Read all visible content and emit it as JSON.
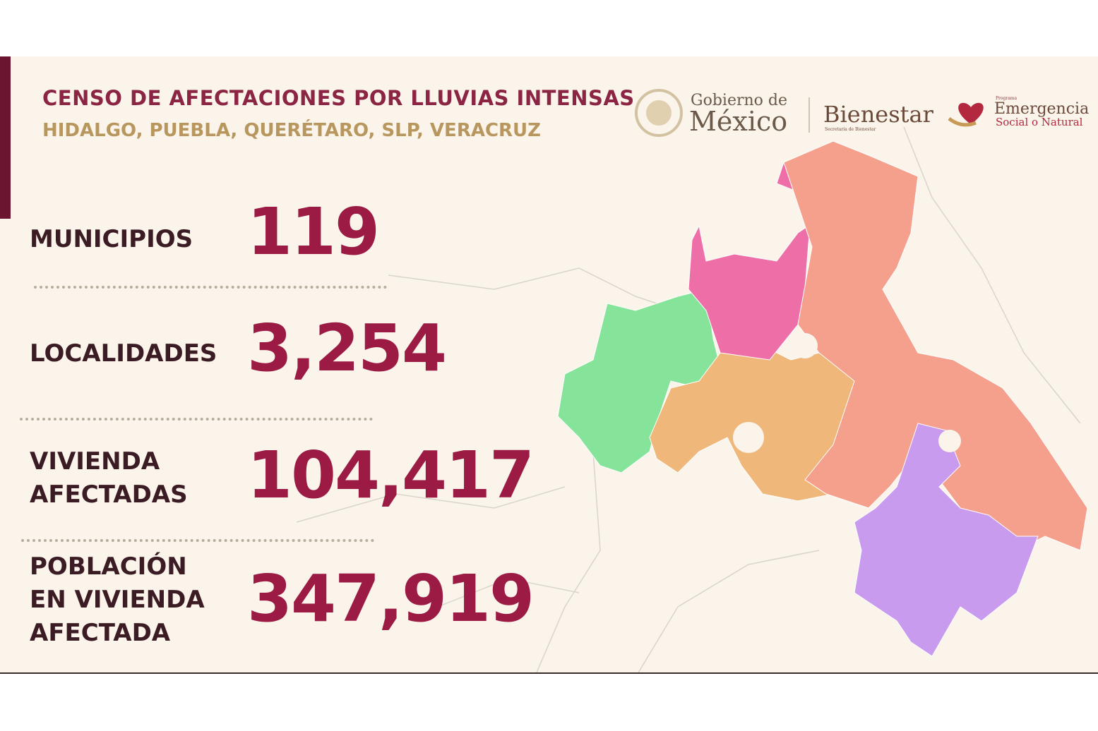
{
  "header": {
    "title": "CENSO DE AFECTACIONES POR LLUVIAS INTENSAS",
    "subtitle": "HIDALGO, PUEBLA, QUERÉTARO, SLP, VERACRUZ"
  },
  "logos": {
    "gobierno_top": "Gobierno de",
    "gobierno_main": "México",
    "bienestar": "Bienestar",
    "bienestar_sub": "Secretaría de Bienestar",
    "emergencia_top": "Programa",
    "emergencia_main": "Emergencia",
    "emergencia_sub": "Social o Natural"
  },
  "stats": [
    {
      "label": [
        "MUNICIPIOS"
      ],
      "value": "119"
    },
    {
      "label": [
        "LOCALIDADES"
      ],
      "value": "3,254"
    },
    {
      "label": [
        "VIVIENDA",
        "AFECTADAS"
      ],
      "value": "104,417"
    },
    {
      "label": [
        "POBLACIÓN",
        "EN VIVIENDA",
        "AFECTADA"
      ],
      "value": "347,919"
    }
  ]
}
